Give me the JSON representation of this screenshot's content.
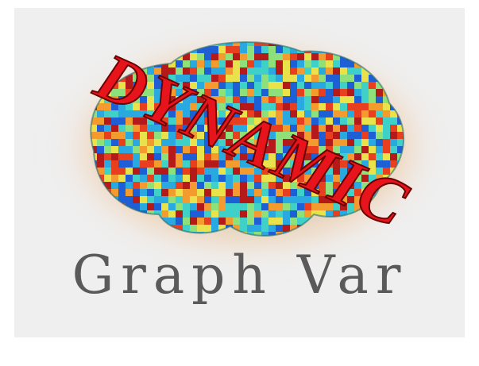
{
  "logo": {
    "overlay_text": "DYNAMIC",
    "title": "Graph Var"
  }
}
